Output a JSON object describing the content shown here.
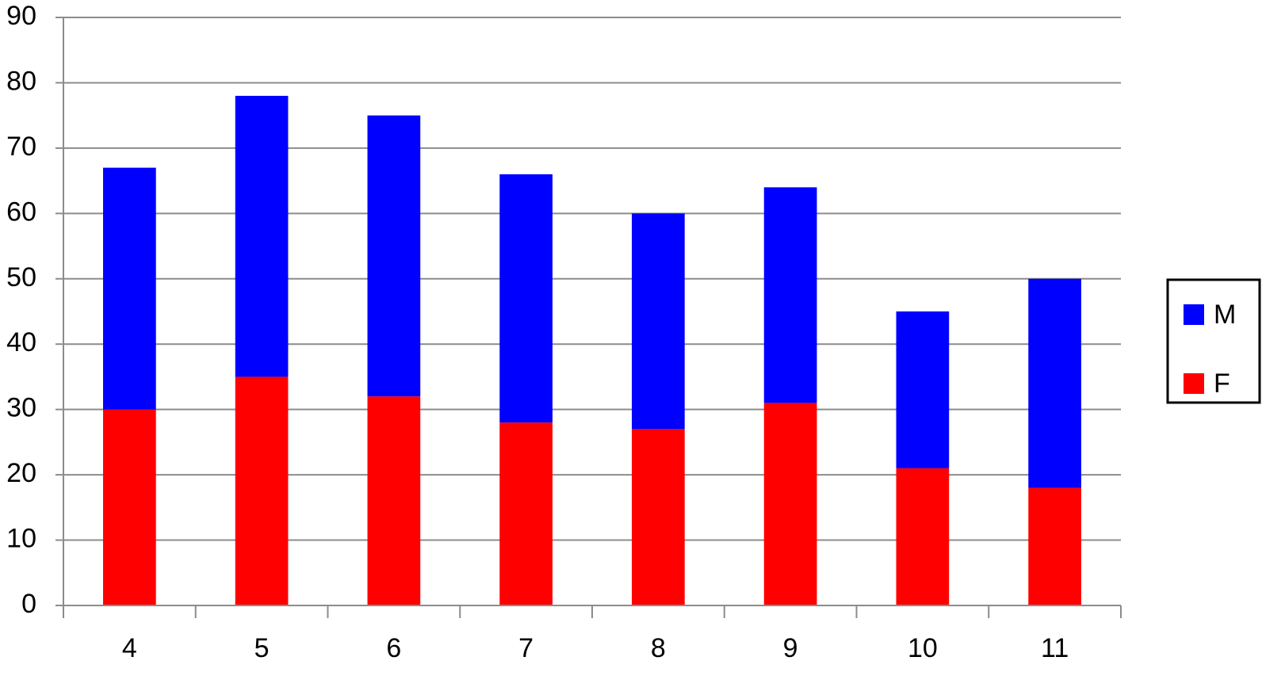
{
  "chart_data": {
    "type": "stacked_bar",
    "categories": [
      "4",
      "5",
      "6",
      "7",
      "8",
      "9",
      "10",
      "11"
    ],
    "series": [
      {
        "name": "F",
        "color": "#ff0000",
        "values": [
          30,
          35,
          32,
          28,
          27,
          31,
          21,
          18
        ]
      },
      {
        "name": "M",
        "color": "#0000ff",
        "values": [
          37,
          43,
          43,
          38,
          33,
          33,
          24,
          32
        ]
      }
    ],
    "ylim": [
      0,
      90
    ],
    "yticks": [
      0,
      10,
      20,
      30,
      40,
      50,
      60,
      70,
      80,
      90
    ],
    "grid": true,
    "legend": "right"
  }
}
